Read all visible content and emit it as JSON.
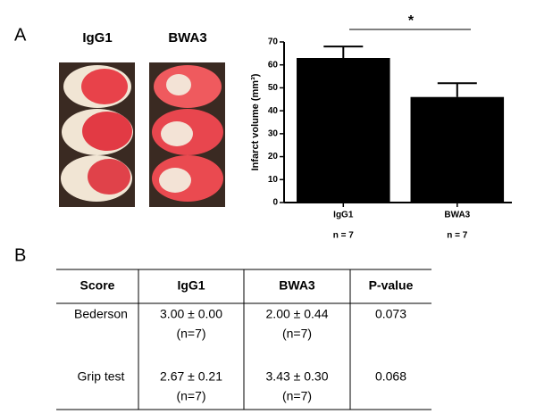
{
  "panel_labels": [
    "A",
    "B"
  ],
  "image_labels": [
    "IgG1",
    "BWA3"
  ],
  "chart_data": {
    "type": "bar",
    "ylabel": "Infarct volume (mm³)",
    "categories": [
      "IgG1",
      "BWA3"
    ],
    "category_notes": [
      "n = 7",
      "n = 7"
    ],
    "values": [
      63,
      46
    ],
    "errors": [
      5,
      6
    ],
    "color": "#000000",
    "ylim": [
      0,
      70
    ],
    "yticks": [
      0,
      10,
      20,
      30,
      40,
      50,
      60,
      70
    ],
    "annotation": "*"
  },
  "table": {
    "header": [
      "Score",
      "IgG1",
      "BWA3",
      "P-value"
    ],
    "rows": [
      [
        "Bederson",
        [
          "3.00 ±  0.00",
          "(n=7)"
        ],
        [
          "2.00 ± 0.44",
          "(n=7)"
        ],
        "0.073"
      ],
      [
        "Grip test",
        [
          "2.67 ±  0.21",
          "(n=7)"
        ],
        [
          "3.43 ± 0.30",
          "(n=7)"
        ],
        "0.068"
      ]
    ]
  }
}
